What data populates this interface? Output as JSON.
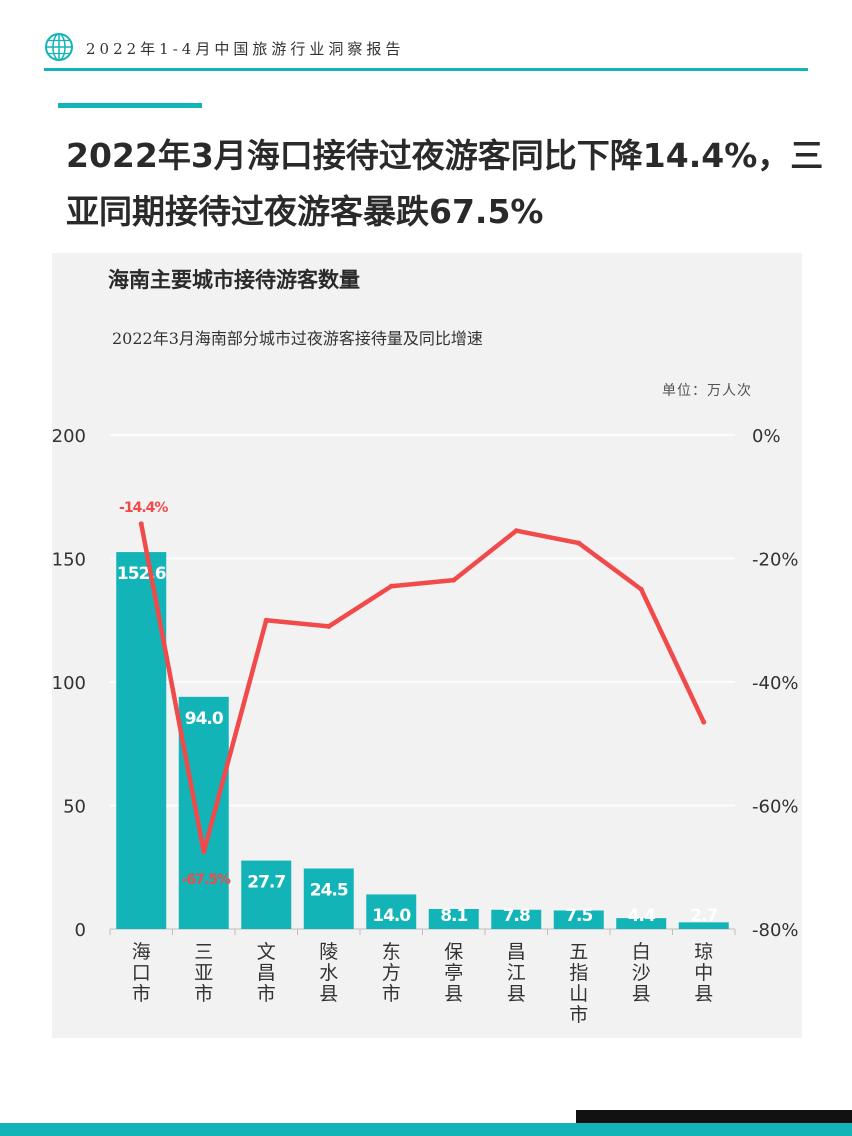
{
  "header": {
    "report_title": "2022年1-4月中国旅游行业洞察报告",
    "logo_icon": "globe-icon"
  },
  "headline": "2022年3月海口接待过夜游客同比下降14.4%，三亚同期接待过夜游客暴跌67.5%",
  "chart": {
    "title": "海南主要城市接待游客数量",
    "subtitle": "2022年3月海南部分城市过夜游客接待量及同比增速",
    "unit": "单位：万人次"
  },
  "colors": {
    "accent": "#13b4b8",
    "bar": "#13b4b8",
    "line": "#f04a4a",
    "panel": "#f2f2f2"
  },
  "chart_data": {
    "type": "bar",
    "categories": [
      "海口市",
      "三亚市",
      "文昌市",
      "陵水县",
      "东方市",
      "保亭县",
      "昌江县",
      "五指山市",
      "白沙县",
      "琼中县"
    ],
    "series": [
      {
        "type": "bar",
        "axis": "left",
        "values": [
          152.6,
          94.0,
          27.7,
          24.5,
          14.0,
          8.1,
          7.8,
          7.5,
          4.4,
          2.7
        ],
        "labels": [
          "152.6",
          "94.0",
          "27.7",
          "24.5",
          "14.0",
          "8.1",
          "7.8",
          "7.5",
          "4.4",
          "2.7"
        ]
      },
      {
        "type": "line",
        "axis": "right",
        "values": [
          -14.4,
          -67.5,
          -30.0,
          -31.0,
          -24.5,
          -23.5,
          -15.5,
          -17.5,
          -25.0,
          -46.5
        ],
        "labels": [
          "-14.4%",
          "-67.5%",
          "",
          "",
          "",
          "",
          "",
          "",
          "",
          ""
        ]
      }
    ],
    "y_left": {
      "lim": [
        0,
        200
      ],
      "ticks": [
        0,
        50,
        100,
        150,
        200
      ],
      "tick_labels": [
        "0",
        "50",
        "100",
        "150",
        "200"
      ]
    },
    "y_right": {
      "lim": [
        -80,
        0
      ],
      "ticks": [
        -80,
        -60,
        -40,
        -20,
        0
      ],
      "tick_labels": [
        "-80%",
        "-60%",
        "-40%",
        "-20%",
        "0%"
      ]
    },
    "grid": true,
    "legend": "none"
  }
}
